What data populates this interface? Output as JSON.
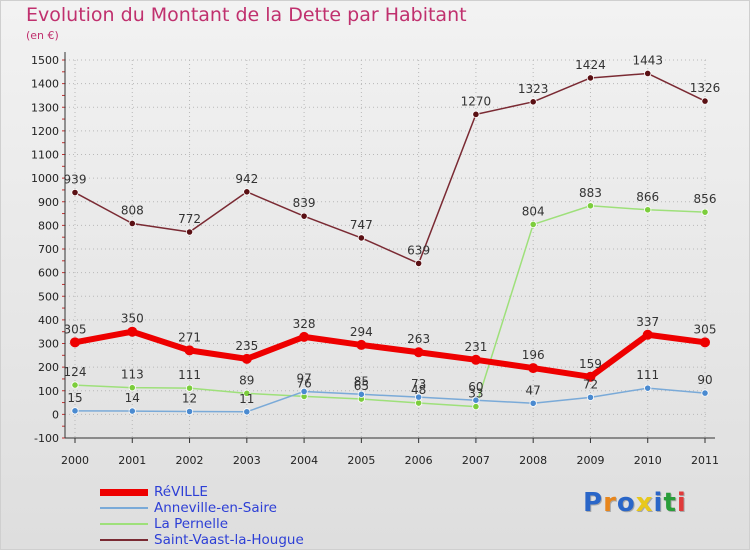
{
  "title": "Evolution du Montant de la Dette par Habitant",
  "unit": "(en €)",
  "logo": "Proxiti",
  "colors": {
    "title": "#c0306e",
    "legend_text": "#2d3fd6",
    "axis": "#333333",
    "grid": "#b8b8b8"
  },
  "chart_data": {
    "type": "line",
    "title": "Evolution du Montant de la Dette par Habitant",
    "ylabel": "(en €)",
    "xlabel": "",
    "x": [
      "2000",
      "2001",
      "2002",
      "2003",
      "2004",
      "2005",
      "2006",
      "2007",
      "2008",
      "2009",
      "2010",
      "2011"
    ],
    "ylim": [
      -100,
      1500
    ],
    "yticks": [
      -100,
      0,
      100,
      200,
      300,
      400,
      500,
      600,
      700,
      800,
      900,
      1000,
      1100,
      1200,
      1300,
      1400,
      1500
    ],
    "grid": true,
    "legend_position": "bottom-left",
    "series": [
      {
        "name": "Saint-Vaast-la-Hougue",
        "color": "#7a2a33",
        "marker": "#5a1014",
        "values": [
          939,
          808,
          772,
          942,
          839,
          747,
          639,
          1270,
          1323,
          1424,
          1443,
          1326
        ],
        "labels": [
          "939",
          "808",
          "772",
          "942",
          "839",
          "747",
          "639",
          "1270",
          "1323",
          "1424",
          "1443",
          "1326"
        ]
      },
      {
        "name": "La Pernelle",
        "color": "#9ee07a",
        "marker": "#7ccd3c",
        "values": [
          124,
          113,
          111,
          89,
          76,
          65,
          48,
          33,
          804,
          883,
          866,
          856
        ],
        "labels": [
          "124",
          "113",
          "111",
          "89",
          "76",
          "65",
          "48",
          "33",
          "804",
          "883",
          "866",
          "856"
        ]
      },
      {
        "name": "Anneville-en-Saire",
        "color": "#7aaad8",
        "marker": "#4a8ad0",
        "values": [
          15,
          14,
          12,
          11,
          97,
          85,
          73,
          60,
          47,
          72,
          111,
          90
        ],
        "labels": [
          "15",
          "14",
          "12",
          "11",
          "97",
          "85",
          "73",
          "60",
          "47",
          "72",
          "111",
          "90"
        ]
      },
      {
        "name": "RéVILLE",
        "color": "#ee0000",
        "marker": "#ee0000",
        "values": [
          305,
          350,
          271,
          235,
          328,
          294,
          263,
          231,
          196,
          159,
          337,
          305
        ],
        "labels": [
          "305",
          "350",
          "271",
          "235",
          "328",
          "294",
          "263",
          "231",
          "196",
          "159",
          "337",
          "305"
        ]
      }
    ],
    "legend": [
      "RéVILLE",
      "Anneville-en-Saire",
      "La Pernelle",
      "Saint-Vaast-la-Hougue"
    ]
  }
}
